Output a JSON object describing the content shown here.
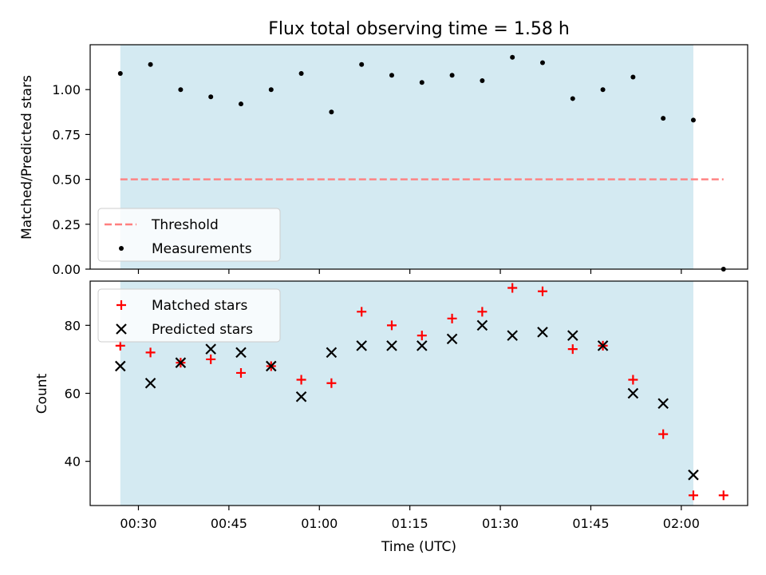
{
  "chart_data": [
    {
      "type": "scatter",
      "title": "Flux total observing time = 1.58 h",
      "ylabel": "Matched/Predicted stars",
      "xlabel": "",
      "ylim": [
        0.0,
        1.25
      ],
      "yticks": [
        "0.00",
        "0.25",
        "0.50",
        "0.75",
        "1.00"
      ],
      "xlim": [
        "00:22",
        "02:11"
      ],
      "shaded_region": [
        "00:27",
        "02:02"
      ],
      "shade_color": "#add8e6",
      "legend_position": "lower-left",
      "series": [
        {
          "name": "Threshold",
          "style": "dashed-line",
          "color": "#ff7f7f",
          "x": [
            "00:27",
            "02:07"
          ],
          "y": [
            0.5,
            0.5
          ]
        },
        {
          "name": "Measurements",
          "style": "dot",
          "color": "#000000",
          "x": [
            "00:27",
            "00:32",
            "00:37",
            "00:42",
            "00:47",
            "00:52",
            "00:57",
            "01:02",
            "01:07",
            "01:12",
            "01:17",
            "01:22",
            "01:27",
            "01:32",
            "01:37",
            "01:42",
            "01:47",
            "01:52",
            "01:57",
            "02:02",
            "02:07"
          ],
          "y": [
            1.09,
            1.14,
            1.0,
            0.96,
            0.92,
            1.0,
            1.09,
            0.875,
            1.14,
            1.08,
            1.04,
            1.08,
            1.05,
            1.18,
            1.15,
            0.95,
            1.0,
            1.07,
            0.84,
            0.83,
            0.0
          ]
        }
      ]
    },
    {
      "type": "scatter",
      "title": "",
      "ylabel": "Count",
      "xlabel": "Time (UTC)",
      "ylim": [
        27,
        93
      ],
      "yticks": [
        "40",
        "60",
        "80"
      ],
      "xlim": [
        "00:22",
        "02:11"
      ],
      "xticks": [
        "00:30",
        "00:45",
        "01:00",
        "01:15",
        "01:30",
        "01:45",
        "02:00"
      ],
      "shaded_region": [
        "00:27",
        "02:02"
      ],
      "shade_color": "#add8e6",
      "legend_position": "top-left",
      "series": [
        {
          "name": "Matched stars",
          "style": "plus",
          "color": "#ff0000",
          "x": [
            "00:27",
            "00:32",
            "00:37",
            "00:42",
            "00:47",
            "00:52",
            "00:57",
            "01:02",
            "01:07",
            "01:12",
            "01:17",
            "01:22",
            "01:27",
            "01:32",
            "01:37",
            "01:42",
            "01:47",
            "01:52",
            "01:57",
            "02:02",
            "02:07"
          ],
          "y": [
            74,
            72,
            69,
            70,
            66,
            68,
            64,
            63,
            84,
            80,
            77,
            82,
            84,
            91,
            90,
            73,
            74,
            64,
            48,
            30,
            30
          ]
        },
        {
          "name": "Predicted stars",
          "style": "x",
          "color": "#000000",
          "x": [
            "00:27",
            "00:32",
            "00:37",
            "00:42",
            "00:47",
            "00:52",
            "00:57",
            "01:02",
            "01:07",
            "01:12",
            "01:17",
            "01:22",
            "01:27",
            "01:32",
            "01:37",
            "01:42",
            "01:47",
            "01:52",
            "01:57",
            "02:02"
          ],
          "y": [
            68,
            63,
            69,
            73,
            72,
            68,
            59,
            72,
            74,
            74,
            74,
            76,
            80,
            77,
            78,
            77,
            74,
            60,
            57,
            36
          ]
        }
      ]
    }
  ]
}
